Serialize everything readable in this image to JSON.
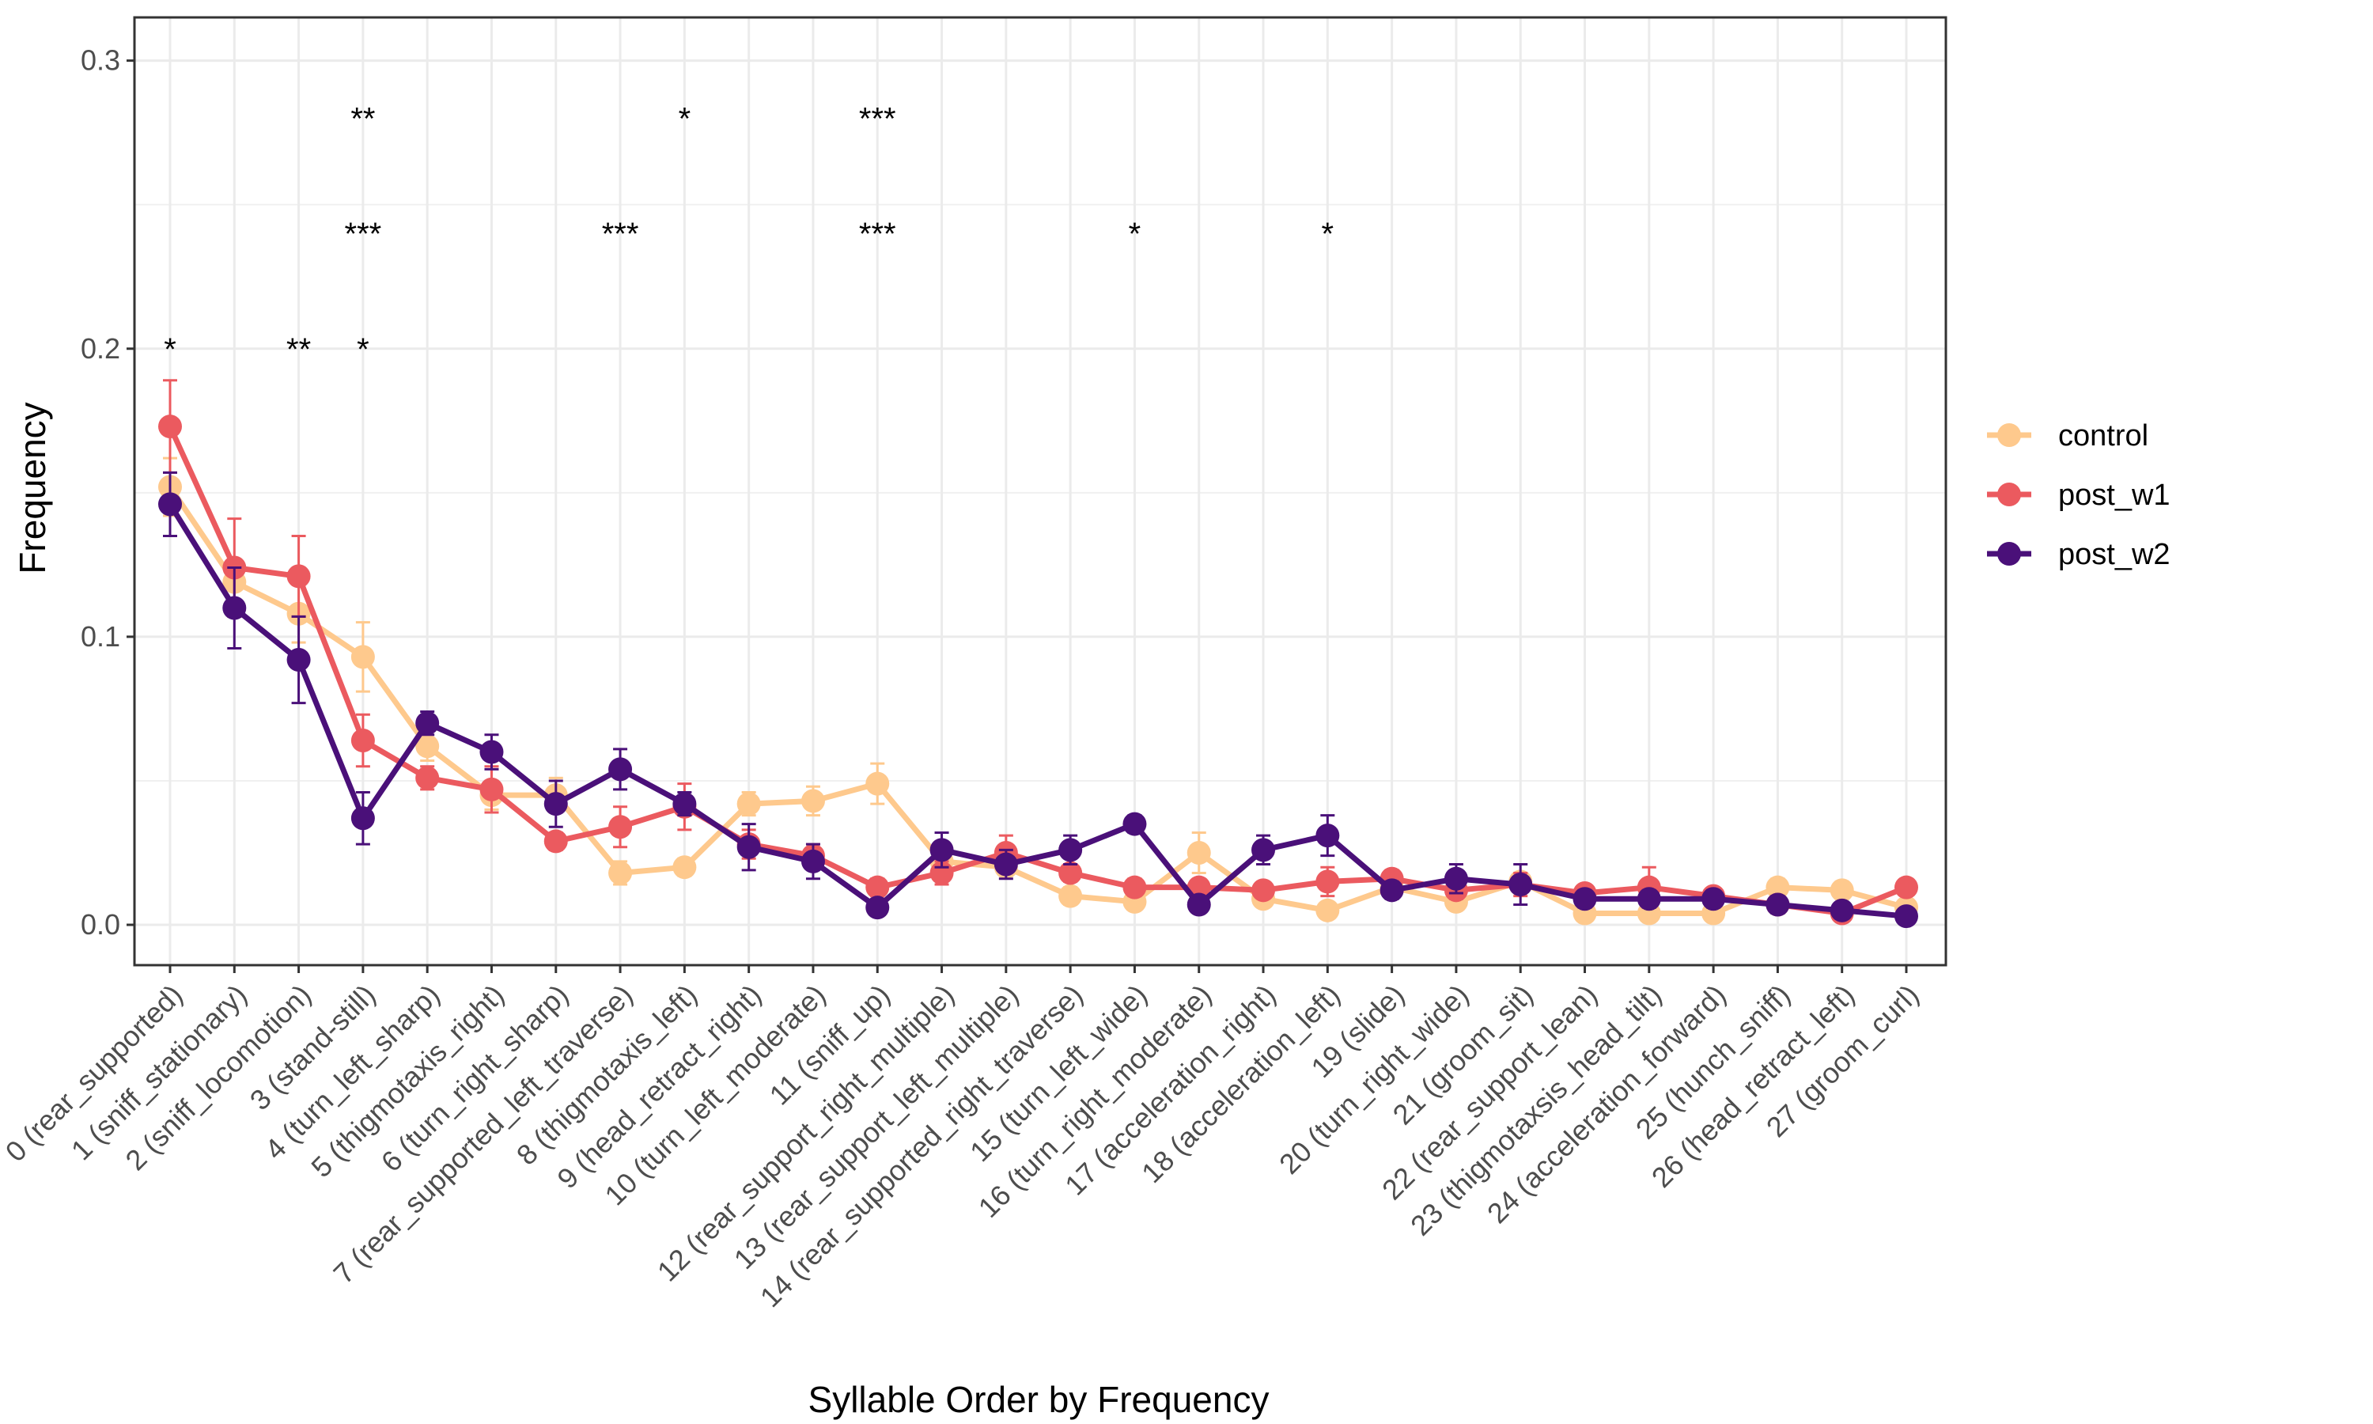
{
  "chart_data": {
    "type": "line",
    "title": "",
    "xlabel": "Syllable Order by Frequency",
    "ylabel": "Frequency",
    "ylim": [
      -0.014,
      0.315
    ],
    "yticks": [
      "0.0",
      "0.1",
      "0.2",
      "0.3"
    ],
    "grid": true,
    "legend_position": "right",
    "categories": [
      "0 (rear_supported)",
      "1 (sniff_stationary)",
      "2 (sniff_locomotion)",
      "3 (stand-still)",
      "4 (turn_left_sharp)",
      "5 (thigmotaxis_right)",
      "6 (turn_right_sharp)",
      "7 (rear_supported_left_traverse)",
      "8 (thigmotaxis_left)",
      "9 (head_retract_right)",
      "10 (turn_left_moderate)",
      "11 (sniff_up)",
      "12 (rear_support_right_multiple)",
      "13 (rear_support_left_multiple)",
      "14 (rear_supported_right_traverse)",
      "15 (turn_left_wide)",
      "16 (turn_right_moderate)",
      "17 (acceleration_right)",
      "18 (acceleration_left)",
      "19 (slide)",
      "20 (turn_right_wide)",
      "21 (groom_sit)",
      "22 (rear_support_lean)",
      "23 (thigmotaxsis_head_tilt)",
      "24 (acceleration_forward)",
      "25 (hunch_sniff)",
      "26 (head_retract_left)",
      "27 (groom_curl)"
    ],
    "series": [
      {
        "name": "control",
        "color": "#FEC98D",
        "values": [
          0.152,
          0.119,
          0.108,
          0.093,
          0.062,
          0.045,
          0.045,
          0.018,
          0.02,
          0.042,
          0.043,
          0.049,
          0.022,
          0.02,
          0.01,
          0.008,
          0.025,
          0.009,
          0.005,
          0.013,
          0.008,
          0.015,
          0.004,
          0.004,
          0.004,
          0.013,
          0.012,
          0.006
        ],
        "errors": [
          0.01,
          0.008,
          0.01,
          0.012,
          0.005,
          0.005,
          0.006,
          0.004,
          0.003,
          0.004,
          0.005,
          0.007,
          0.004,
          0.003,
          0.003,
          0.002,
          0.007,
          0.002,
          0.002,
          0.003,
          0.002,
          0.003,
          0.001,
          0.002,
          0.001,
          0.003,
          0.003,
          0.002
        ]
      },
      {
        "name": "post_w1",
        "color": "#EB5A5F",
        "values": [
          0.173,
          0.124,
          0.121,
          0.064,
          0.051,
          0.047,
          0.029,
          0.034,
          0.041,
          0.028,
          0.024,
          0.013,
          0.018,
          0.025,
          0.018,
          0.013,
          0.013,
          0.012,
          0.015,
          0.016,
          0.012,
          0.014,
          0.011,
          0.013,
          0.01,
          0.007,
          0.004,
          0.013
        ],
        "errors": [
          0.016,
          0.017,
          0.014,
          0.009,
          0.004,
          0.008,
          0.003,
          0.007,
          0.008,
          0.005,
          0.004,
          0.003,
          0.004,
          0.006,
          0.003,
          0.003,
          0.002,
          0.002,
          0.005,
          0.003,
          0.003,
          0.004,
          0.002,
          0.007,
          0.002,
          0.002,
          0.002,
          0.002
        ]
      },
      {
        "name": "post_w2",
        "color": "#4A1079",
        "values": [
          0.146,
          0.11,
          0.092,
          0.037,
          0.07,
          0.06,
          0.042,
          0.054,
          0.042,
          0.027,
          0.022,
          0.006,
          0.026,
          0.021,
          0.026,
          0.035,
          0.007,
          0.026,
          0.031,
          0.012,
          0.016,
          0.014,
          0.009,
          0.009,
          0.009,
          0.007,
          0.005,
          0.003
        ],
        "errors": [
          0.011,
          0.014,
          0.015,
          0.009,
          0.004,
          0.006,
          0.008,
          0.007,
          0.004,
          0.008,
          0.006,
          0.002,
          0.006,
          0.005,
          0.005,
          0.003,
          0.002,
          0.005,
          0.007,
          0.003,
          0.005,
          0.007,
          0.003,
          0.003,
          0.003,
          0.003,
          0.002,
          0.002
        ]
      }
    ],
    "annotations": [
      {
        "category_index": 0,
        "y": 0.2,
        "text": "*"
      },
      {
        "category_index": 2,
        "y": 0.2,
        "text": "**"
      },
      {
        "category_index": 3,
        "y": 0.2,
        "text": "*"
      },
      {
        "category_index": 3,
        "y": 0.24,
        "text": "***"
      },
      {
        "category_index": 3,
        "y": 0.28,
        "text": "**"
      },
      {
        "category_index": 7,
        "y": 0.24,
        "text": "***"
      },
      {
        "category_index": 8,
        "y": 0.28,
        "text": "*"
      },
      {
        "category_index": 11,
        "y": 0.24,
        "text": "***"
      },
      {
        "category_index": 11,
        "y": 0.28,
        "text": "***"
      },
      {
        "category_index": 15,
        "y": 0.24,
        "text": "*"
      },
      {
        "category_index": 18,
        "y": 0.24,
        "text": "*"
      }
    ]
  }
}
